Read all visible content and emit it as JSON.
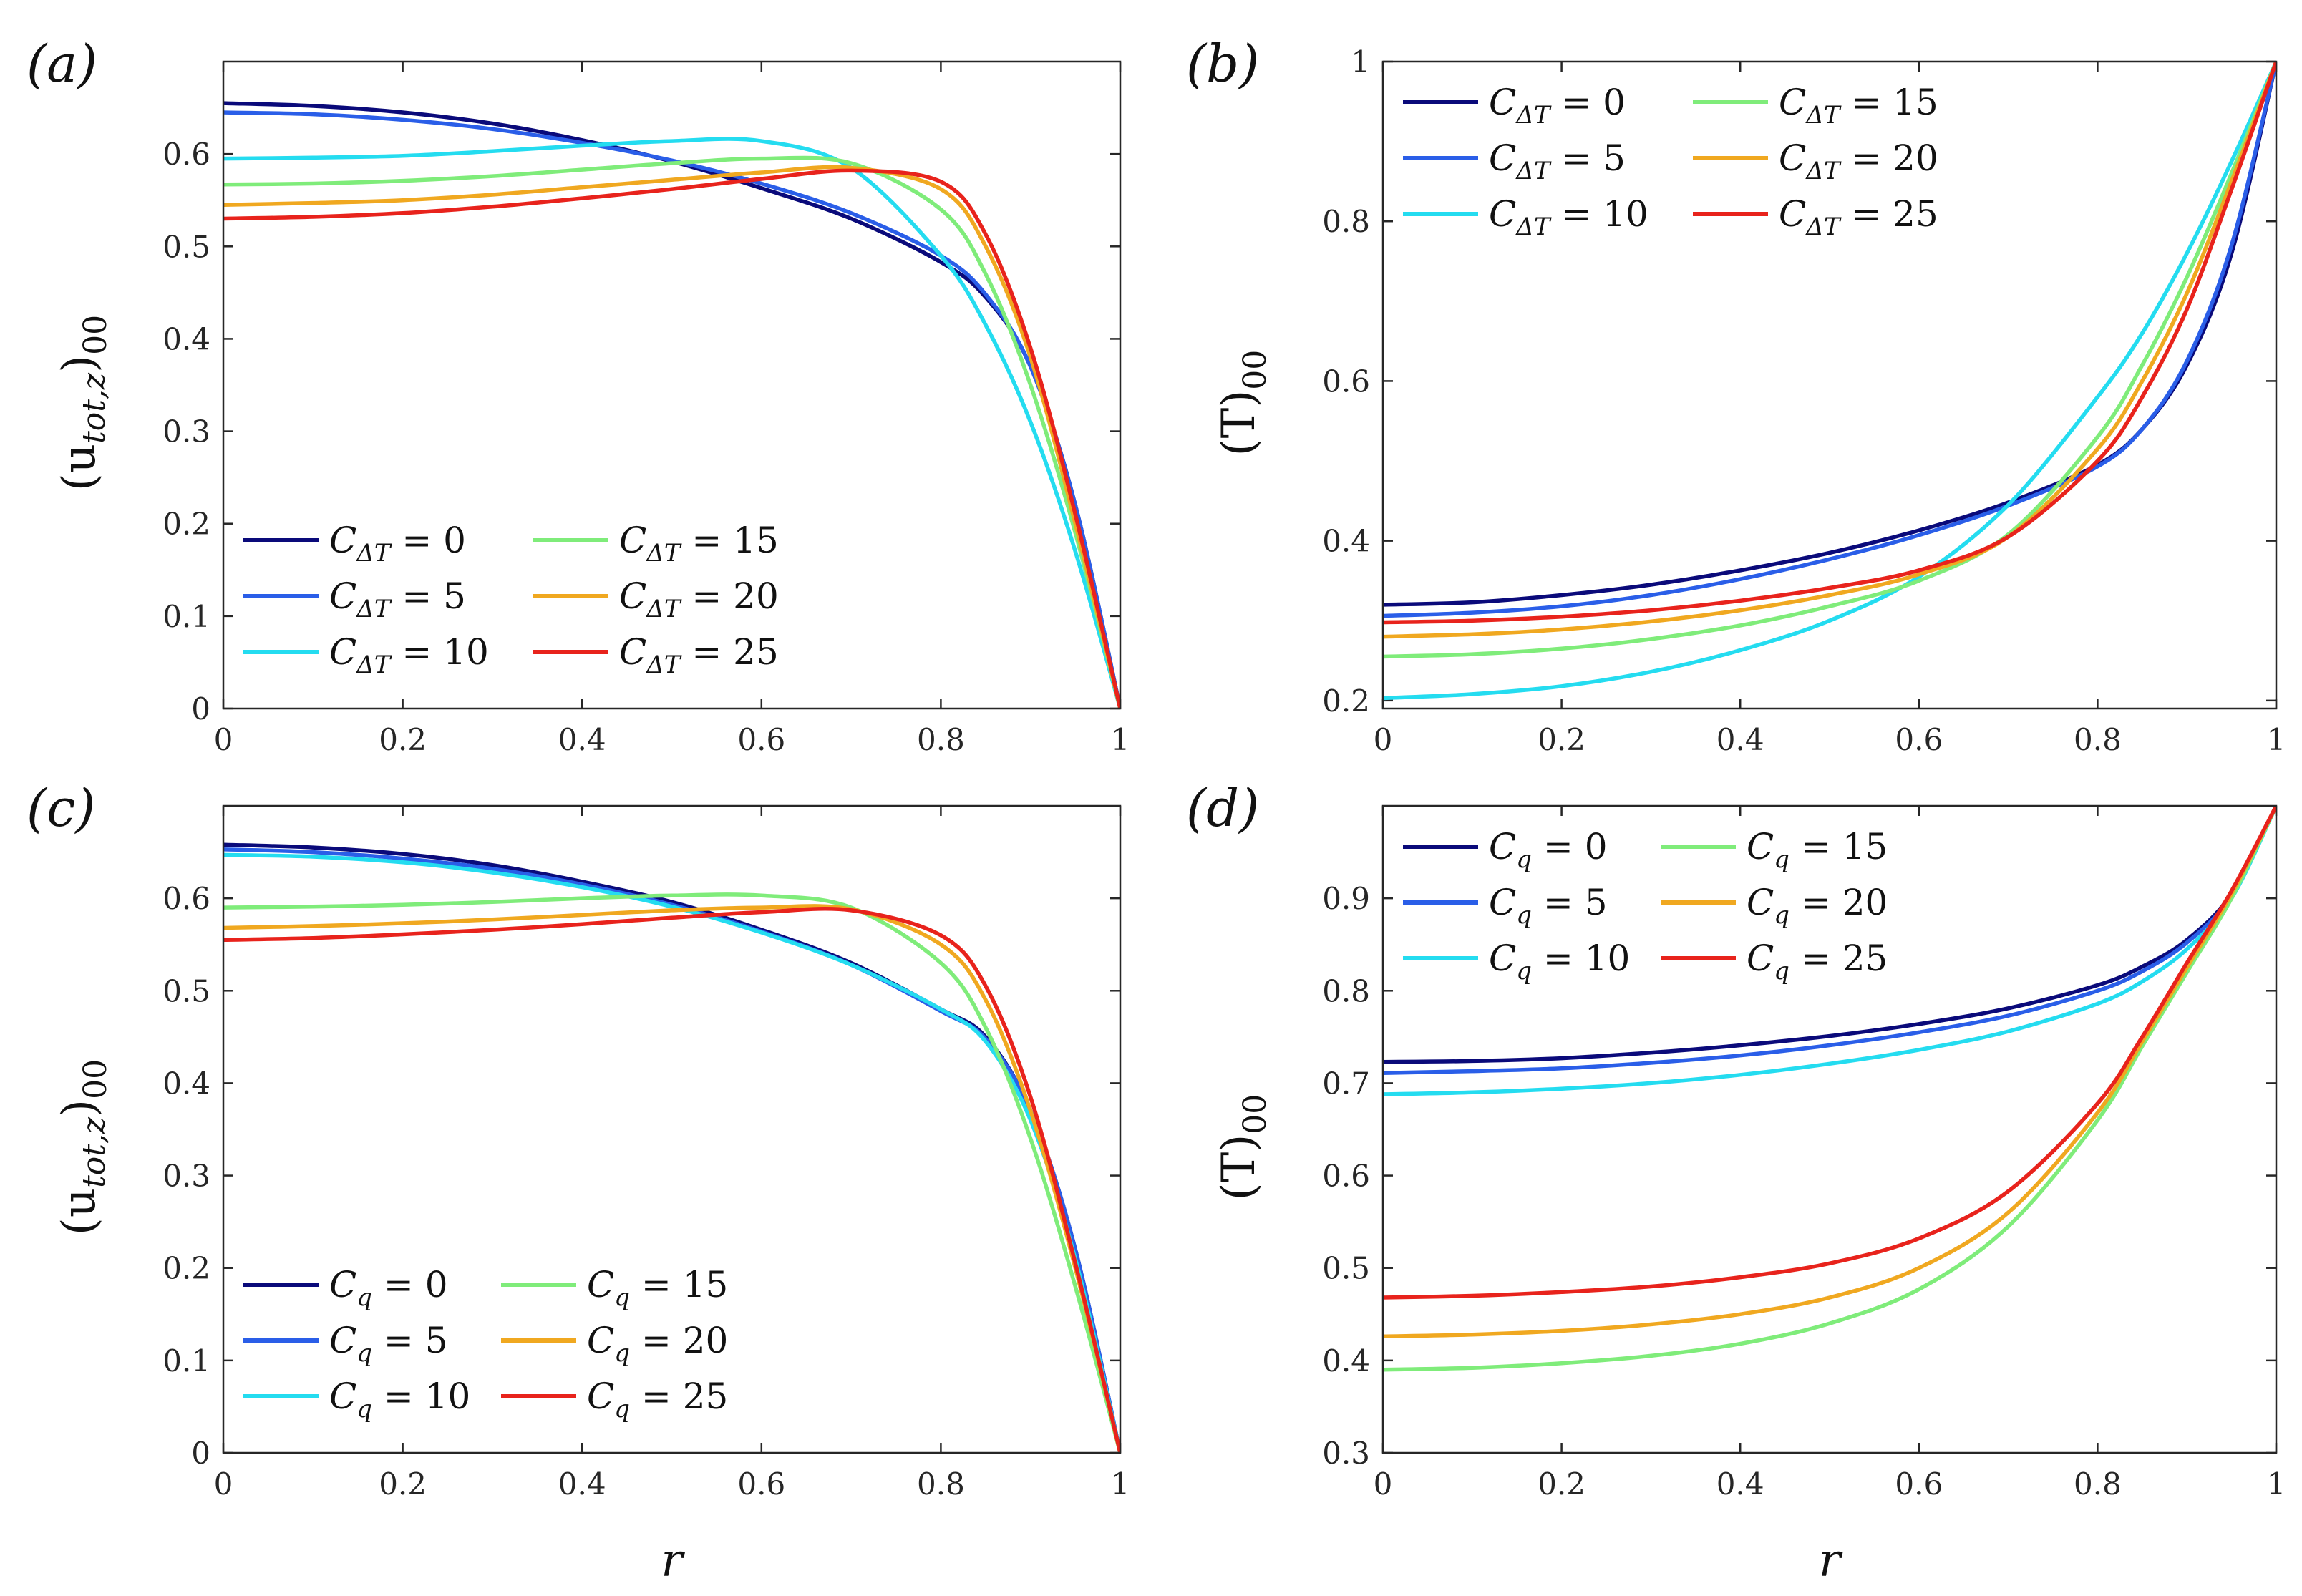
{
  "chart_data": [
    {
      "type": "line",
      "panel_label": "(a)",
      "xlabel": "r",
      "ylabel": "(u_tot,z)_00",
      "ylabel_main": "(u",
      "ylabel_sub": "tot,z",
      "ylabel_end": ")",
      "ylabel_subscript": "00",
      "xlim": [
        0,
        1
      ],
      "ylim": [
        0,
        0.7
      ],
      "xticks": [
        "0",
        "0.2",
        "0.4",
        "0.6",
        "0.8",
        "1"
      ],
      "yticks": [
        "0",
        "0.1",
        "0.2",
        "0.3",
        "0.4",
        "0.5",
        "0.6"
      ],
      "legend_position": "bottom-left",
      "x": [
        0,
        0.1,
        0.2,
        0.3,
        0.4,
        0.5,
        0.6,
        0.7,
        0.8,
        0.85,
        0.9,
        0.95,
        1.0
      ],
      "series": [
        {
          "name": "C_ΔT = 0",
          "sym": "C",
          "sub": "ΔT",
          "val": "= 0",
          "color": "#0a0a7a",
          "values": [
            0.655,
            0.652,
            0.645,
            0.633,
            0.615,
            0.592,
            0.563,
            0.53,
            0.483,
            0.445,
            0.37,
            0.22,
            0.0
          ]
        },
        {
          "name": "C_ΔT = 5",
          "sym": "C",
          "sub": "ΔT",
          "val": "= 5",
          "color": "#2a5ee8",
          "values": [
            0.645,
            0.643,
            0.637,
            0.627,
            0.612,
            0.593,
            0.568,
            0.536,
            0.49,
            0.448,
            0.37,
            0.22,
            0.0
          ]
        },
        {
          "name": "C_ΔT = 10",
          "sym": "C",
          "sub": "ΔT",
          "val": "= 10",
          "color": "#24dcf0",
          "values": [
            0.595,
            0.596,
            0.598,
            0.603,
            0.609,
            0.614,
            0.614,
            0.585,
            0.49,
            0.415,
            0.31,
            0.17,
            0.0
          ]
        },
        {
          "name": "C_ΔT = 15",
          "sym": "C",
          "sub": "ΔT",
          "val": "= 15",
          "color": "#7fec7a",
          "values": [
            0.567,
            0.568,
            0.571,
            0.576,
            0.583,
            0.59,
            0.595,
            0.59,
            0.54,
            0.47,
            0.35,
            0.19,
            0.0
          ]
        },
        {
          "name": "C_ΔT = 20",
          "sym": "C",
          "sub": "ΔT",
          "val": "= 20",
          "color": "#f0a820",
          "values": [
            0.545,
            0.547,
            0.55,
            0.556,
            0.564,
            0.572,
            0.58,
            0.585,
            0.562,
            0.5,
            0.38,
            0.2,
            0.0
          ]
        },
        {
          "name": "C_ΔT = 25",
          "sym": "C",
          "sub": "ΔT",
          "val": "= 25",
          "color": "#e8231c",
          "values": [
            0.53,
            0.532,
            0.536,
            0.543,
            0.552,
            0.562,
            0.573,
            0.582,
            0.57,
            0.513,
            0.39,
            0.21,
            0.0
          ]
        }
      ]
    },
    {
      "type": "line",
      "panel_label": "(b)",
      "xlabel": "r",
      "ylabel": "(T)_00",
      "ylabel_main": "(T)",
      "ylabel_sub": "",
      "ylabel_end": "",
      "ylabel_subscript": "00",
      "xlim": [
        0,
        1
      ],
      "ylim": [
        0.19,
        1
      ],
      "xticks": [
        "0",
        "0.2",
        "0.4",
        "0.6",
        "0.8",
        "1"
      ],
      "yticks": [
        "0.2",
        "0.4",
        "0.6",
        "0.8",
        "1"
      ],
      "legend_position": "top-left",
      "x": [
        0,
        0.1,
        0.2,
        0.3,
        0.4,
        0.5,
        0.6,
        0.7,
        0.8,
        0.85,
        0.9,
        0.95,
        1.0
      ],
      "series": [
        {
          "name": "C_ΔT = 0",
          "sym": "C",
          "sub": "ΔT",
          "val": "= 0",
          "color": "#0a0a7a",
          "values": [
            0.32,
            0.323,
            0.332,
            0.345,
            0.363,
            0.385,
            0.413,
            0.448,
            0.495,
            0.54,
            0.62,
            0.76,
            1.0
          ]
        },
        {
          "name": "C_ΔT = 5",
          "sym": "C",
          "sub": "ΔT",
          "val": "= 5",
          "color": "#2a5ee8",
          "values": [
            0.306,
            0.31,
            0.318,
            0.332,
            0.352,
            0.377,
            0.407,
            0.444,
            0.493,
            0.54,
            0.625,
            0.77,
            1.0
          ]
        },
        {
          "name": "C_ΔT = 10",
          "sym": "C",
          "sub": "ΔT",
          "val": "= 10",
          "color": "#24dcf0",
          "values": [
            0.203,
            0.208,
            0.218,
            0.236,
            0.263,
            0.3,
            0.355,
            0.445,
            0.58,
            0.66,
            0.76,
            0.875,
            1.0
          ]
        },
        {
          "name": "C_ΔT = 15",
          "sym": "C",
          "sub": "ΔT",
          "val": "= 15",
          "color": "#7fec7a",
          "values": [
            0.255,
            0.258,
            0.265,
            0.277,
            0.294,
            0.318,
            0.35,
            0.408,
            0.53,
            0.62,
            0.73,
            0.86,
            1.0
          ]
        },
        {
          "name": "C_ΔT = 20",
          "sym": "C",
          "sub": "ΔT",
          "val": "= 20",
          "color": "#f0a820",
          "values": [
            0.28,
            0.283,
            0.289,
            0.299,
            0.313,
            0.332,
            0.358,
            0.405,
            0.515,
            0.6,
            0.71,
            0.85,
            1.0
          ]
        },
        {
          "name": "C_ΔT = 25",
          "sym": "C",
          "sub": "ΔT",
          "val": "= 25",
          "color": "#e8231c",
          "values": [
            0.298,
            0.3,
            0.305,
            0.313,
            0.325,
            0.341,
            0.363,
            0.405,
            0.5,
            0.58,
            0.69,
            0.84,
            1.0
          ]
        }
      ]
    },
    {
      "type": "line",
      "panel_label": "(c)",
      "xlabel": "r",
      "ylabel": "(u_tot,z)_00",
      "ylabel_main": "(u",
      "ylabel_sub": "tot,z",
      "ylabel_end": ")",
      "ylabel_subscript": "00",
      "xlim": [
        0,
        1
      ],
      "ylim": [
        0,
        0.7
      ],
      "xticks": [
        "0",
        "0.2",
        "0.4",
        "0.6",
        "0.8",
        "1"
      ],
      "yticks": [
        "0",
        "0.1",
        "0.2",
        "0.3",
        "0.4",
        "0.5",
        "0.6"
      ],
      "legend_position": "bottom-left",
      "x": [
        0,
        0.1,
        0.2,
        0.3,
        0.4,
        0.5,
        0.6,
        0.7,
        0.8,
        0.85,
        0.9,
        0.95,
        1.0
      ],
      "series": [
        {
          "name": "C_q = 0",
          "sym": "C",
          "sub": "q",
          "val": "= 0",
          "color": "#0a0a7a",
          "values": [
            0.658,
            0.655,
            0.648,
            0.636,
            0.618,
            0.596,
            0.566,
            0.53,
            0.48,
            0.45,
            0.37,
            0.22,
            0.0
          ]
        },
        {
          "name": "C_q = 5",
          "sym": "C",
          "sub": "q",
          "val": "= 5",
          "color": "#2a5ee8",
          "values": [
            0.653,
            0.65,
            0.643,
            0.632,
            0.615,
            0.593,
            0.564,
            0.528,
            0.478,
            0.448,
            0.37,
            0.22,
            0.0
          ]
        },
        {
          "name": "C_q = 10",
          "sym": "C",
          "sub": "q",
          "val": "= 10",
          "color": "#24dcf0",
          "values": [
            0.647,
            0.645,
            0.639,
            0.628,
            0.612,
            0.591,
            0.563,
            0.528,
            0.48,
            0.445,
            0.36,
            0.21,
            0.0
          ]
        },
        {
          "name": "C_q = 15",
          "sym": "C",
          "sub": "q",
          "val": "= 15",
          "color": "#7fec7a",
          "values": [
            0.59,
            0.591,
            0.593,
            0.596,
            0.6,
            0.603,
            0.603,
            0.59,
            0.53,
            0.46,
            0.34,
            0.18,
            0.0
          ]
        },
        {
          "name": "C_q = 20",
          "sym": "C",
          "sub": "q",
          "val": "= 20",
          "color": "#f0a820",
          "values": [
            0.568,
            0.57,
            0.573,
            0.577,
            0.582,
            0.587,
            0.59,
            0.588,
            0.55,
            0.49,
            0.37,
            0.2,
            0.0
          ]
        },
        {
          "name": "C_q = 25",
          "sym": "C",
          "sub": "q",
          "val": "= 25",
          "color": "#e8231c",
          "values": [
            0.555,
            0.557,
            0.561,
            0.566,
            0.572,
            0.579,
            0.585,
            0.587,
            0.56,
            0.505,
            0.385,
            0.205,
            0.0
          ]
        }
      ]
    },
    {
      "type": "line",
      "panel_label": "(d)",
      "xlabel": "r",
      "ylabel": "(T)_00",
      "ylabel_main": "(T)",
      "ylabel_sub": "",
      "ylabel_end": "",
      "ylabel_subscript": "00",
      "xlim": [
        0,
        1
      ],
      "ylim": [
        0.3,
        1
      ],
      "xticks": [
        "0",
        "0.2",
        "0.4",
        "0.6",
        "0.8",
        "1"
      ],
      "yticks": [
        "0.3",
        "0.4",
        "0.5",
        "0.6",
        "0.7",
        "0.8",
        "0.9"
      ],
      "legend_position": "top-left",
      "x": [
        0,
        0.1,
        0.2,
        0.3,
        0.4,
        0.5,
        0.6,
        0.7,
        0.8,
        0.85,
        0.9,
        0.95,
        1.0
      ],
      "series": [
        {
          "name": "C_q = 0",
          "sym": "C",
          "sub": "q",
          "val": "= 0",
          "color": "#0a0a7a",
          "values": [
            0.723,
            0.724,
            0.727,
            0.733,
            0.741,
            0.751,
            0.764,
            0.781,
            0.806,
            0.826,
            0.855,
            0.905,
            1.0
          ]
        },
        {
          "name": "C_q = 5",
          "sym": "C",
          "sub": "q",
          "val": "= 5",
          "color": "#2a5ee8",
          "values": [
            0.711,
            0.713,
            0.716,
            0.722,
            0.73,
            0.741,
            0.755,
            0.773,
            0.8,
            0.821,
            0.852,
            0.903,
            1.0
          ]
        },
        {
          "name": "C_q = 10",
          "sym": "C",
          "sub": "q",
          "val": "= 10",
          "color": "#24dcf0",
          "values": [
            0.688,
            0.69,
            0.694,
            0.7,
            0.709,
            0.721,
            0.736,
            0.756,
            0.786,
            0.81,
            0.845,
            0.9,
            1.0
          ]
        },
        {
          "name": "C_q = 15",
          "sym": "C",
          "sub": "q",
          "val": "= 15",
          "color": "#7fec7a",
          "values": [
            0.39,
            0.392,
            0.397,
            0.405,
            0.418,
            0.44,
            0.477,
            0.545,
            0.66,
            0.74,
            0.82,
            0.9,
            1.0
          ]
        },
        {
          "name": "C_q = 20",
          "sym": "C",
          "sub": "q",
          "val": "= 20",
          "color": "#f0a820",
          "values": [
            0.426,
            0.428,
            0.432,
            0.439,
            0.45,
            0.468,
            0.5,
            0.56,
            0.668,
            0.745,
            0.825,
            0.905,
            1.0
          ]
        },
        {
          "name": "C_q = 25",
          "sym": "C",
          "sub": "q",
          "val": "= 25",
          "color": "#e8231c",
          "values": [
            0.468,
            0.47,
            0.474,
            0.48,
            0.49,
            0.505,
            0.532,
            0.583,
            0.678,
            0.75,
            0.83,
            0.908,
            1.0
          ]
        }
      ]
    }
  ]
}
